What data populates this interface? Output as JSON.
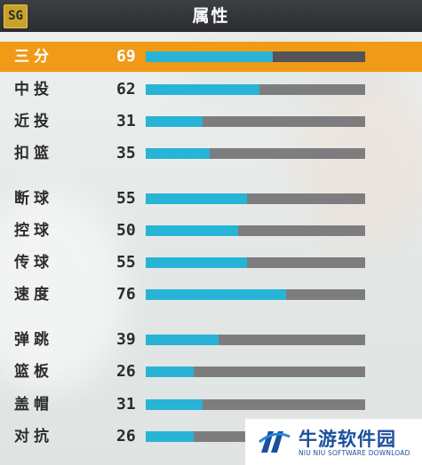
{
  "header": {
    "title": "属性",
    "position_badge": "SG"
  },
  "colors": {
    "header_bg": "#2f3236",
    "highlight": "#f09a17",
    "bar_fill": "#27b4d6",
    "bar_track": "#7d7d7f"
  },
  "stats": [
    {
      "label": "三分",
      "value": "69",
      "level": 0.58,
      "highlighted": true
    },
    {
      "label": "中投",
      "value": "62",
      "level": 0.52
    },
    {
      "label": "近投",
      "value": "31",
      "level": 0.26
    },
    {
      "label": "扣篮",
      "value": "35",
      "level": 0.29
    },
    {
      "label": "断球",
      "value": "55",
      "level": 0.46
    },
    {
      "label": "控球",
      "value": "50",
      "level": 0.42
    },
    {
      "label": "传球",
      "value": "55",
      "level": 0.46
    },
    {
      "label": "速度",
      "value": "76",
      "level": 0.64
    },
    {
      "label": "弹跳",
      "value": "39",
      "level": 0.33
    },
    {
      "label": "篮板",
      "value": "26",
      "level": 0.22
    },
    {
      "label": "盖帽",
      "value": "31",
      "level": 0.26
    },
    {
      "label": "对抗",
      "value": "26",
      "level": 0.22
    }
  ],
  "watermark": {
    "name": "牛游软件园",
    "subtitle": "NIU NIU SOFTWARE DOWNLOAD",
    "icon": "niuniu-logo-icon"
  }
}
